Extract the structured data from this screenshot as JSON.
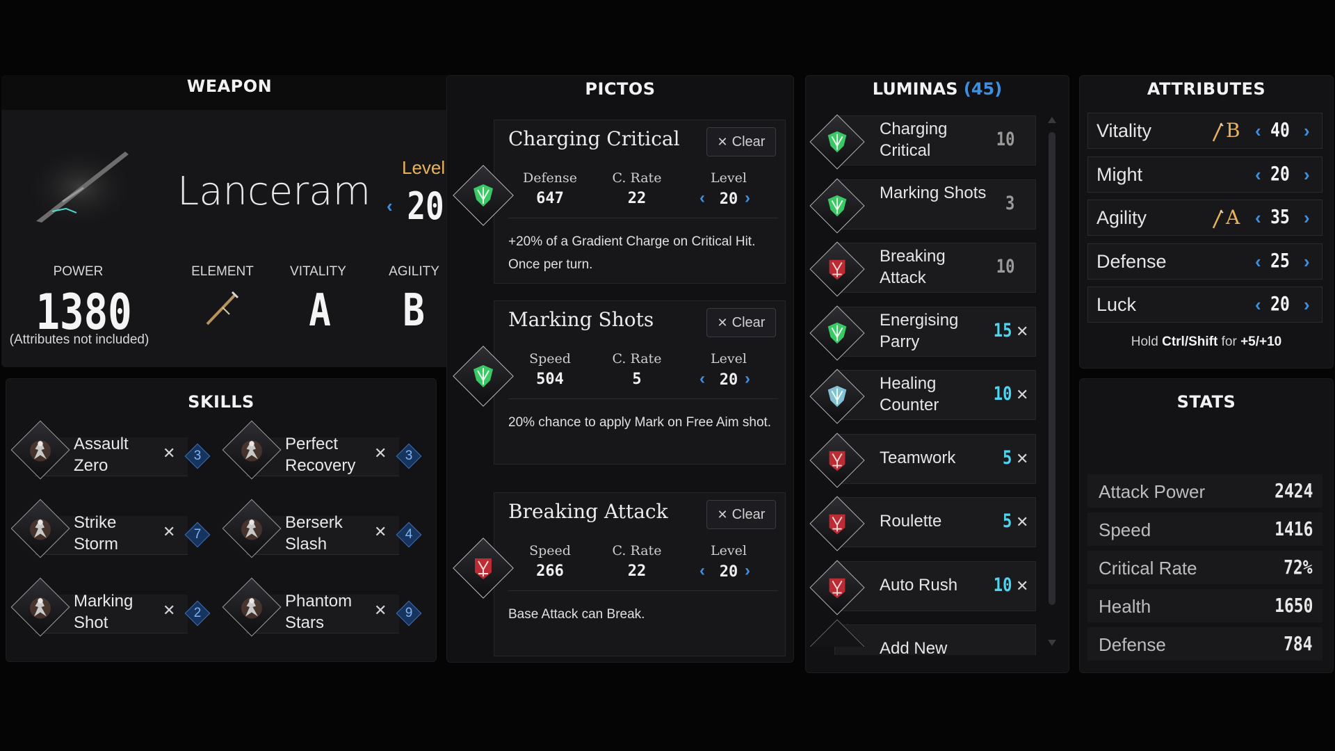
{
  "weapon": {
    "title": "WEAPON",
    "name": "Lanceram",
    "level_label": "Level",
    "level_value": "20",
    "stats": [
      {
        "label": "POWER",
        "value": "1380"
      },
      {
        "label": "ELEMENT",
        "value": ""
      },
      {
        "label": "VITALITY",
        "value": "A"
      },
      {
        "label": "AGILITY",
        "value": "B"
      }
    ],
    "note": "(Attributes not included)"
  },
  "skills": {
    "title": "SKILLS",
    "items": [
      {
        "name": "Assault Zero",
        "cost": "3"
      },
      {
        "name": "Perfect Recovery",
        "cost": "3"
      },
      {
        "name": "Strike Storm",
        "cost": "7"
      },
      {
        "name": "Berserk Slash",
        "cost": "4"
      },
      {
        "name": "Marking Shot",
        "cost": "2"
      },
      {
        "name": "Phantom Stars",
        "cost": "9"
      }
    ]
  },
  "pictos": {
    "title": "PICTOS",
    "clear_label": "Clear",
    "level_label": "Level",
    "items": [
      {
        "name": "Charging Critical",
        "stat1_label": "Defense",
        "stat1_value": "647",
        "stat2_label": "C. Rate",
        "stat2_value": "22",
        "level": "20",
        "desc": "+20% of a Gradient Charge on Critical Hit. Once per turn.",
        "color": "#3ddb6c"
      },
      {
        "name": "Marking Shots",
        "stat1_label": "Speed",
        "stat1_value": "504",
        "stat2_label": "C. Rate",
        "stat2_value": "5",
        "level": "20",
        "desc": "20% chance to apply Mark on Free Aim shot.",
        "color": "#3ddb6c"
      },
      {
        "name": "Breaking Attack",
        "stat1_label": "Speed",
        "stat1_value": "266",
        "stat2_label": "C. Rate",
        "stat2_value": "22",
        "level": "20",
        "desc": "Base Attack can Break.",
        "color": "#d62e36"
      }
    ]
  },
  "luminas": {
    "title": "LUMINAS",
    "count": "(45)",
    "items": [
      {
        "name": "Charging Critical",
        "cost": "10",
        "equipped": false,
        "color": "#3ddb6c"
      },
      {
        "name": "Marking Shots",
        "cost": "3",
        "equipped": false,
        "color": "#3ddb6c"
      },
      {
        "name": "Breaking Attack",
        "cost": "10",
        "equipped": false,
        "color": "#d62e36"
      },
      {
        "name": "Energising Parry",
        "cost": "15",
        "equipped": true,
        "color": "#3ddb6c"
      },
      {
        "name": "Healing Counter",
        "cost": "10",
        "equipped": true,
        "color": "#8fd3e8"
      },
      {
        "name": "Teamwork",
        "cost": "5",
        "equipped": true,
        "color": "#d62e36"
      },
      {
        "name": "Roulette",
        "cost": "5",
        "equipped": true,
        "color": "#d62e36"
      },
      {
        "name": "Auto Rush",
        "cost": "10",
        "equipped": true,
        "color": "#d62e36"
      }
    ],
    "add_new": "Add New"
  },
  "attributes": {
    "title": "ATTRIBUTES",
    "items": [
      {
        "name": "Vitality",
        "grade": "B",
        "value": "40"
      },
      {
        "name": "Might",
        "grade": "",
        "value": "20"
      },
      {
        "name": "Agility",
        "grade": "A",
        "value": "35"
      },
      {
        "name": "Defense",
        "grade": "",
        "value": "25"
      },
      {
        "name": "Luck",
        "grade": "",
        "value": "20"
      }
    ],
    "hint_prefix": "Hold",
    "hint_keys": "Ctrl/Shift",
    "hint_mid": "for",
    "hint_values": "+5/+10"
  },
  "stats": {
    "title": "STATS",
    "items": [
      {
        "name": "Attack Power",
        "value": "2424"
      },
      {
        "name": "Speed",
        "value": "1416"
      },
      {
        "name": "Critical Rate",
        "value": "72%"
      },
      {
        "name": "Health",
        "value": "1650"
      },
      {
        "name": "Defense",
        "value": "784"
      }
    ]
  },
  "colors": {
    "accent_blue": "#3d8fe0",
    "cost_cyan": "#4fd4f0",
    "green": "#3ddb6c",
    "red": "#d62e36"
  }
}
